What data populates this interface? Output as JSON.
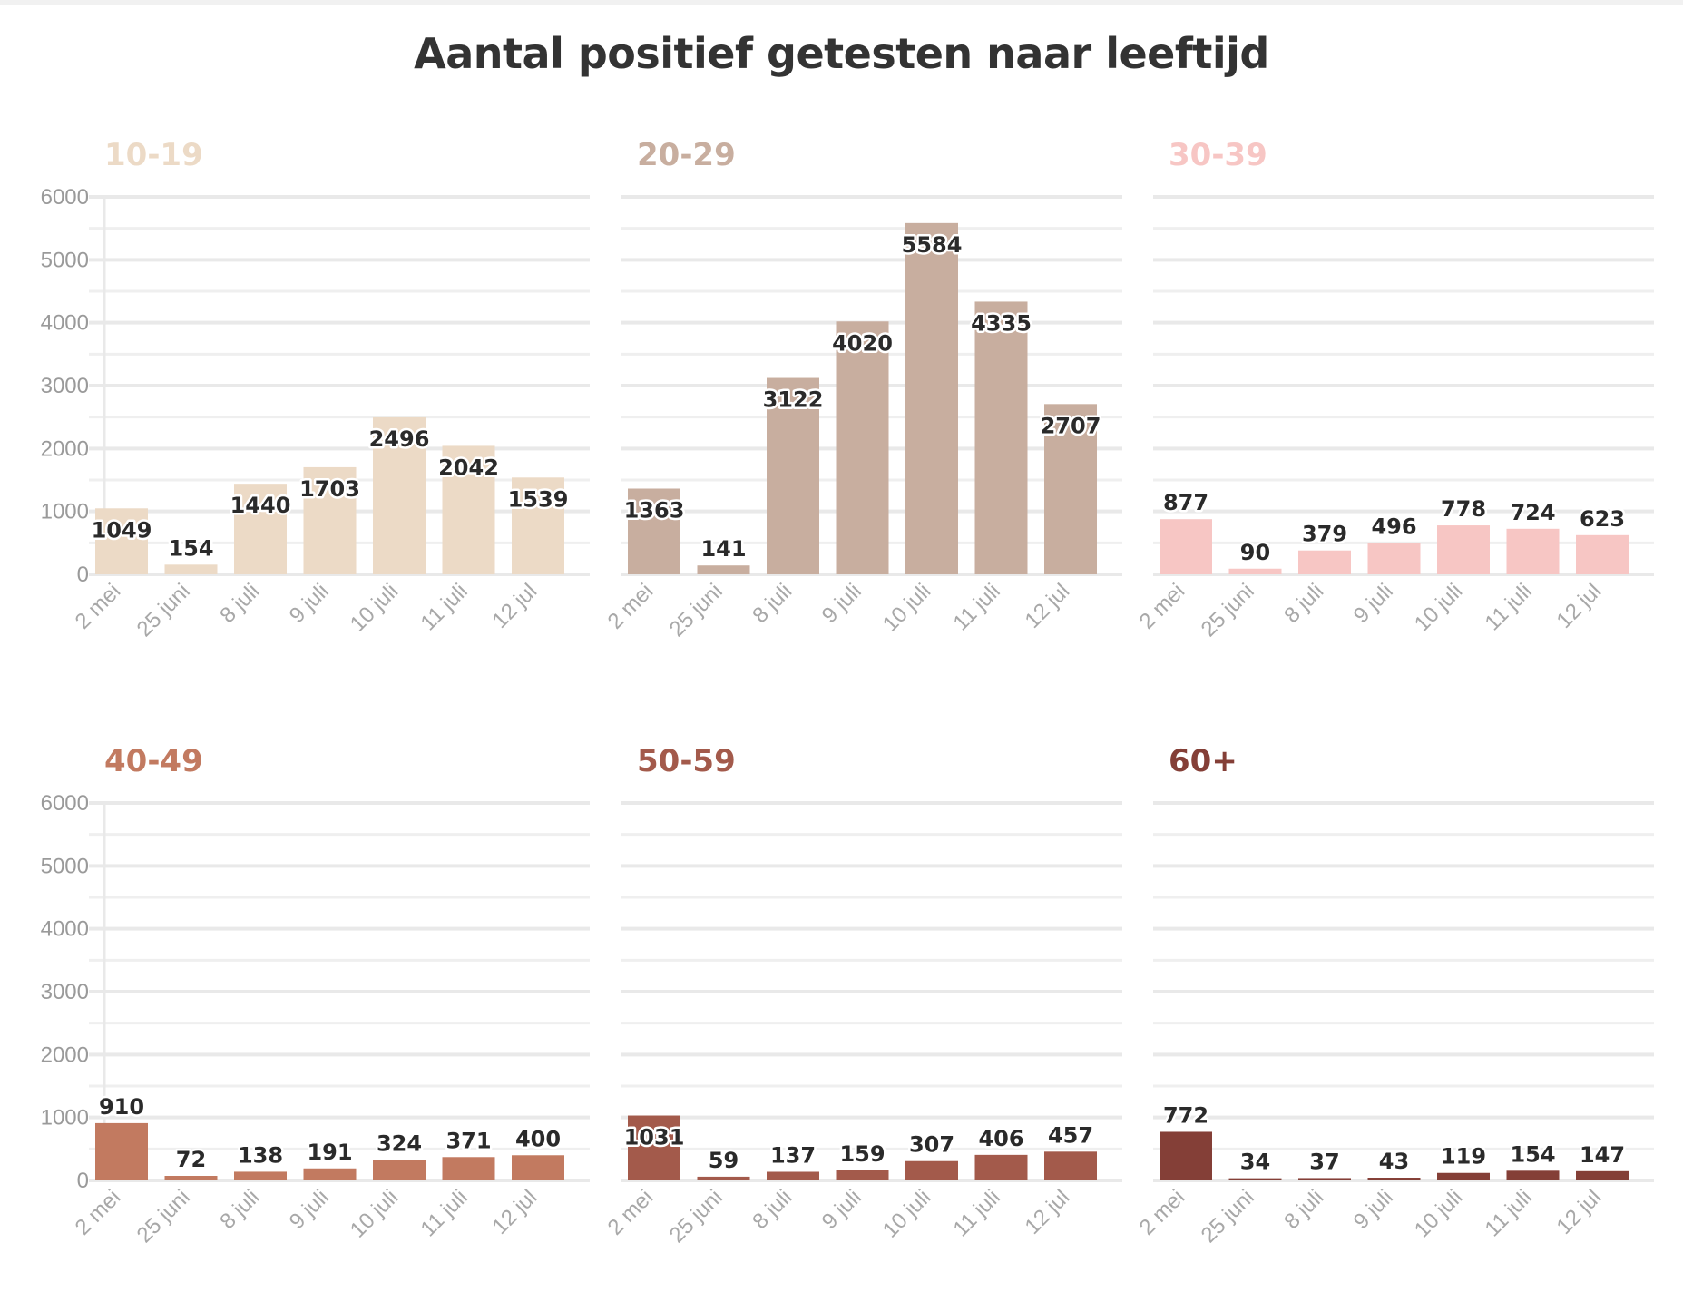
{
  "chart_data": {
    "type": "bar",
    "title": "Aantal positief getesten naar leeftijd",
    "categories": [
      "2 mei",
      "25 juni",
      "8 juli",
      "9 juli",
      "10 juli",
      "11 juli",
      "12 jul"
    ],
    "ylim": [
      0,
      6000
    ],
    "yticks": [
      "0",
      "1000",
      "2000",
      "3000",
      "4000",
      "5000",
      "6000"
    ],
    "grid": true,
    "legend": "none",
    "panels": [
      {
        "name": "10-19",
        "color": "#ecdac6",
        "values": [
          1049,
          154,
          1440,
          1703,
          2496,
          2042,
          1539
        ]
      },
      {
        "name": "20-29",
        "color": "#c8ae9f",
        "values": [
          1363,
          141,
          3122,
          4020,
          5584,
          4335,
          2707
        ]
      },
      {
        "name": "30-39",
        "color": "#f7c6c4",
        "values": [
          877,
          90,
          379,
          496,
          778,
          724,
          623
        ]
      },
      {
        "name": "40-49",
        "color": "#c27a60",
        "values": [
          910,
          72,
          138,
          191,
          324,
          371,
          400
        ]
      },
      {
        "name": "50-59",
        "color": "#a35a4b",
        "values": [
          1031,
          59,
          137,
          159,
          307,
          406,
          457
        ]
      },
      {
        "name": "60+",
        "color": "#843f37",
        "values": [
          772,
          34,
          37,
          43,
          119,
          154,
          147
        ]
      }
    ]
  }
}
